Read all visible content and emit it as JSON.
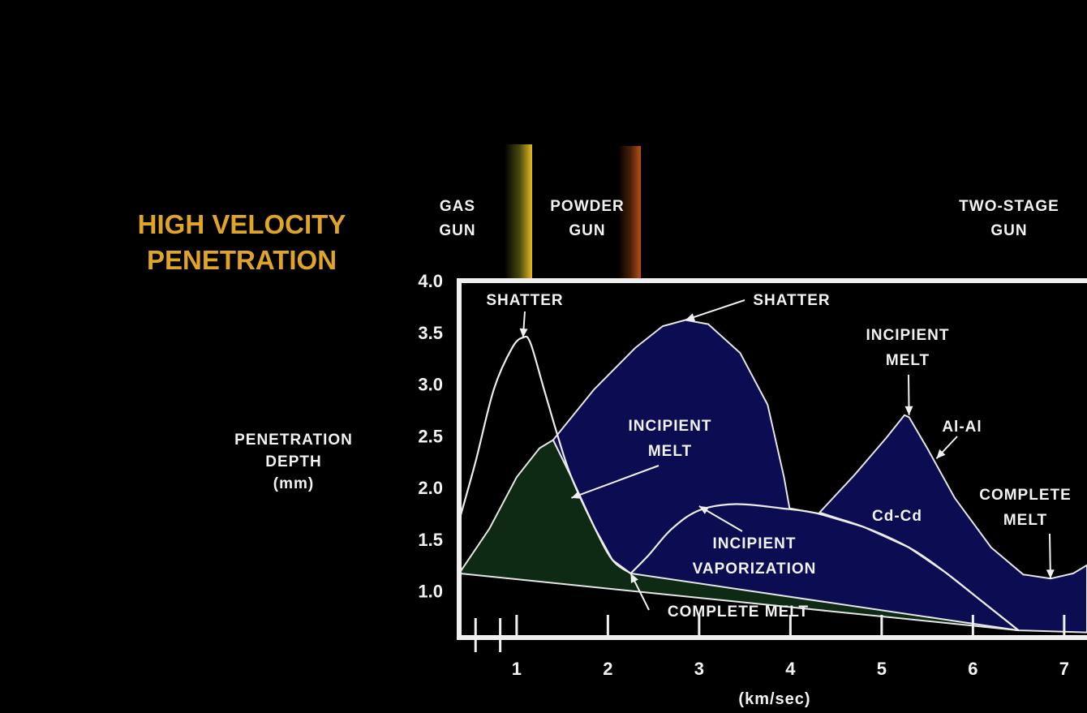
{
  "title_lines": [
    "HIGH VELOCITY",
    "PENETRATION"
  ],
  "colors": {
    "background": "#000000",
    "title": "#e0a526",
    "axis": "#f0f0f0",
    "green_region": "#0f2a14",
    "blue_region": "#0c0c52",
    "gas_gun_band": "#e6b820",
    "powder_gun_band": "#b8501a"
  },
  "gun_labels": [
    {
      "name": "gas-gun-label",
      "lines": [
        "GAS",
        "GUN"
      ]
    },
    {
      "name": "powder-gun-label",
      "lines": [
        "POWDER",
        "GUN"
      ]
    },
    {
      "name": "two-stage-gun-label",
      "lines": [
        "TWO-STAGE",
        "GUN"
      ]
    }
  ],
  "ylabel_lines": [
    "PENETRATION",
    "DEPTH",
    "(mm)"
  ],
  "xlabel": "(km/sec)",
  "chart_data": {
    "type": "area",
    "title": "HIGH VELOCITY PENETRATION",
    "xlabel": "(km/sec)",
    "ylabel": "PENETRATION DEPTH (mm)",
    "xlim": [
      0.37,
      7.25
    ],
    "ylim": [
      0.55,
      4.0
    ],
    "x_ticks": [
      1,
      2,
      3,
      4,
      5,
      6,
      7
    ],
    "x_tick_labels": [
      "1",
      "2",
      "3",
      "4",
      "5",
      "6",
      "7"
    ],
    "x_minor_ticks": [
      0.55,
      0.82
    ],
    "y_ticks": [
      1.0,
      1.5,
      2.0,
      2.5,
      3.0,
      3.5,
      4.0
    ],
    "y_tick_labels": [
      "1.0",
      "1.5",
      "2.0",
      "2.5",
      "3.0",
      "3.5",
      "4.0"
    ],
    "grid": false,
    "series": [
      {
        "name": "Cd-Cd",
        "regions": [
          {
            "fill": "green",
            "points": [
              [
                0.37,
                1.17
              ],
              [
                0.7,
                1.6
              ],
              [
                1.0,
                2.1
              ],
              [
                1.25,
                2.38
              ],
              [
                1.4,
                2.46
              ],
              [
                1.6,
                2.1
              ],
              [
                1.85,
                1.62
              ],
              [
                2.05,
                1.3
              ],
              [
                2.25,
                1.17
              ],
              [
                2.45,
                1.35
              ],
              [
                2.7,
                1.6
              ],
              [
                3.0,
                1.78
              ],
              [
                3.4,
                1.84
              ],
              [
                3.9,
                1.8
              ],
              [
                4.3,
                1.75
              ],
              [
                4.8,
                1.62
              ],
              [
                5.3,
                1.42
              ],
              [
                5.7,
                1.18
              ],
              [
                6.1,
                0.9
              ],
              [
                6.5,
                0.62
              ]
            ]
          },
          {
            "fill": "blue",
            "points": [
              [
                1.4,
                2.46
              ],
              [
                1.85,
                2.95
              ],
              [
                2.3,
                3.35
              ],
              [
                2.6,
                3.56
              ],
              [
                2.85,
                3.62
              ],
              [
                3.1,
                3.58
              ],
              [
                3.45,
                3.3
              ],
              [
                3.75,
                2.8
              ],
              [
                3.93,
                2.1
              ],
              [
                3.99,
                1.8
              ],
              [
                4.3,
                1.75
              ],
              [
                4.8,
                1.62
              ],
              [
                5.3,
                1.42
              ],
              [
                5.7,
                1.18
              ],
              [
                6.1,
                0.9
              ],
              [
                6.5,
                0.62
              ],
              [
                2.25,
                1.17
              ],
              [
                2.05,
                1.3
              ],
              [
                1.85,
                1.62
              ],
              [
                1.6,
                2.1
              ]
            ]
          }
        ]
      },
      {
        "name": "Al-Al",
        "regions": [
          {
            "fill": "blue",
            "points": [
              [
                4.32,
                1.76
              ],
              [
                4.7,
                2.12
              ],
              [
                5.05,
                2.48
              ],
              [
                5.25,
                2.7
              ],
              [
                5.3,
                2.68
              ],
              [
                5.5,
                2.38
              ],
              [
                5.8,
                1.9
              ],
              [
                6.2,
                1.42
              ],
              [
                6.55,
                1.16
              ],
              [
                6.85,
                1.12
              ],
              [
                7.1,
                1.17
              ],
              [
                7.25,
                1.25
              ],
              [
                7.25,
                0.6
              ],
              [
                6.5,
                0.62
              ],
              [
                6.1,
                0.9
              ],
              [
                5.7,
                1.18
              ],
              [
                5.3,
                1.42
              ],
              [
                4.8,
                1.62
              ]
            ]
          }
        ]
      }
    ],
    "curves": [
      {
        "name": "gas-gun-shatter-curve",
        "points": [
          [
            0.37,
            1.68
          ],
          [
            0.55,
            2.25
          ],
          [
            0.75,
            2.95
          ],
          [
            0.95,
            3.35
          ],
          [
            1.07,
            3.45
          ],
          [
            1.15,
            3.4
          ],
          [
            1.3,
            2.95
          ],
          [
            1.45,
            2.5
          ],
          [
            1.6,
            2.1
          ],
          [
            1.85,
            1.62
          ],
          [
            2.05,
            1.3
          ],
          [
            2.25,
            1.17
          ]
        ]
      },
      {
        "name": "incipient-vaporization-curve",
        "points": [
          [
            2.25,
            1.17
          ],
          [
            2.45,
            1.35
          ],
          [
            2.7,
            1.6
          ],
          [
            3.0,
            1.78
          ],
          [
            3.4,
            1.84
          ],
          [
            3.9,
            1.8
          ],
          [
            4.3,
            1.75
          ],
          [
            4.8,
            1.62
          ],
          [
            5.3,
            1.42
          ],
          [
            5.7,
            1.18
          ],
          [
            6.1,
            0.9
          ],
          [
            6.5,
            0.62
          ]
        ]
      }
    ],
    "annotations": [
      {
        "name": "shatter-annotation-1",
        "lines": [
          "SHATTER"
        ],
        "at": [
          1.07,
          3.45
        ]
      },
      {
        "name": "shatter-annotation-2",
        "lines": [
          "SHATTER"
        ],
        "at": [
          2.85,
          3.62
        ]
      },
      {
        "name": "incipient-melt-annotation-1",
        "lines": [
          "INCIPIENT",
          "MELT"
        ],
        "at": [
          1.6,
          1.9
        ]
      },
      {
        "name": "incipient-melt-annotation-2",
        "lines": [
          "INCIPIENT",
          "MELT"
        ],
        "at": [
          5.3,
          2.7
        ]
      },
      {
        "name": "al-al-annotation",
        "lines": [
          "Al-Al"
        ],
        "at": [
          5.6,
          2.28
        ]
      },
      {
        "name": "cd-cd-annotation",
        "lines": [
          "Cd-Cd"
        ],
        "at": null
      },
      {
        "name": "complete-melt-annotation-1",
        "lines": [
          "COMPLETE MELT"
        ],
        "at": [
          2.25,
          1.17
        ]
      },
      {
        "name": "complete-melt-annotation-2",
        "lines": [
          "COMPLETE",
          "MELT"
        ],
        "at": [
          6.85,
          1.12
        ]
      },
      {
        "name": "incipient-vaporization-annotation",
        "lines": [
          "INCIPIENT",
          "VAPORIZATION"
        ],
        "at": [
          3.0,
          1.82
        ]
      }
    ]
  }
}
